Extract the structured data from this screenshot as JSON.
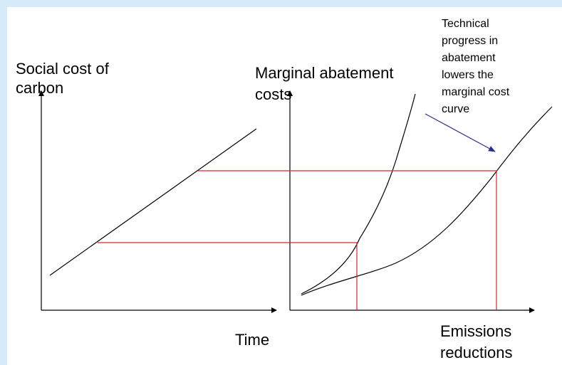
{
  "left_panel": {
    "y_label": [
      "Social cost of",
      "carbon"
    ],
    "x_label": "Time"
  },
  "right_panel": {
    "y_label": [
      "Marginal abatement",
      "costs"
    ],
    "x_label": [
      "Emissions",
      "reductions"
    ]
  },
  "annotation": [
    "Technical",
    "progress in",
    "abatement",
    "lowers the",
    "marginal cost",
    "curve"
  ]
}
